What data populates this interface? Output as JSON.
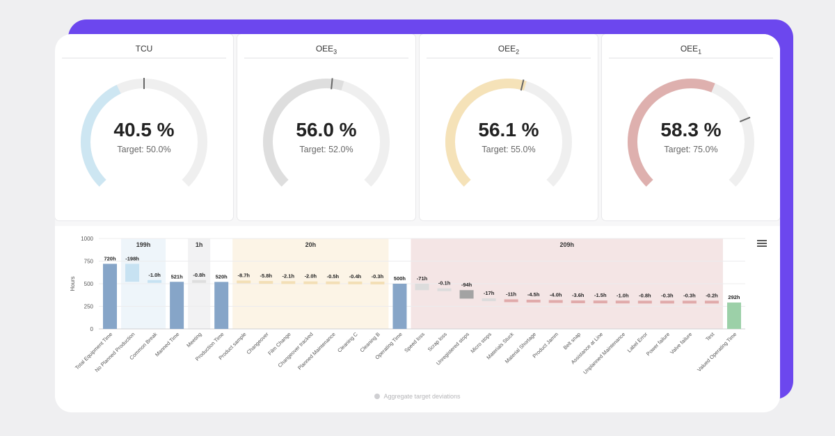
{
  "gauges": [
    {
      "title_main": "TCU",
      "title_sub": "",
      "value_label": "40.5 %",
      "target_label": "Target: 50.0%",
      "value": 40.5,
      "target": 50.0,
      "color": "#cde6f2"
    },
    {
      "title_main": "OEE",
      "title_sub": "3",
      "value_label": "56.0 %",
      "target_label": "Target: 52.0%",
      "value": 56.0,
      "target": 52.0,
      "color": "#dedede"
    },
    {
      "title_main": "OEE",
      "title_sub": "2",
      "value_label": "56.1 %",
      "target_label": "Target: 55.0%",
      "value": 56.1,
      "target": 55.0,
      "color": "#f5e2b8"
    },
    {
      "title_main": "OEE",
      "title_sub": "1",
      "value_label": "58.3 %",
      "target_label": "Target: 75.0%",
      "value": 58.3,
      "target": 75.0,
      "color": "#deb0ae"
    }
  ],
  "chart_data": {
    "type": "bar",
    "subtype": "waterfall",
    "ylabel": "Hours",
    "ylim": [
      0,
      1000
    ],
    "yticks": [
      "0",
      "250",
      "500",
      "750",
      "1000"
    ],
    "legend": "Aggregate target deviations",
    "legend_position": "bottom",
    "grid": true,
    "categories": [
      "Total Equipment Time",
      "No Planned Production",
      "Common Break",
      "Manned Time",
      "Meeting",
      "Production Time",
      "Product sample",
      "Changeover",
      "Film Change",
      "Changeover tracked",
      "Planned Maintenance",
      "Cleaning C",
      "Cleaning B",
      "Operating Time",
      "Speed loss",
      "Scrap loss",
      "Unregistered stops",
      "Micro stops",
      "Materials Stuck",
      "Material Shortage",
      "Product Jamm",
      "Belt snap",
      "Assistance at Line",
      "Unplanned Maintenance",
      "Label Error",
      "Power failure",
      "Valve failure",
      "Test",
      "Valued Operating Time"
    ],
    "bars": [
      {
        "label": "720h",
        "low": 0,
        "high": 720,
        "kind": "total"
      },
      {
        "label": "-198h",
        "low": 522,
        "high": 720,
        "kind": "blue"
      },
      {
        "label": "-1.0h",
        "low": 521,
        "high": 540,
        "kind": "blue"
      },
      {
        "label": "521h",
        "low": 0,
        "high": 521,
        "kind": "total"
      },
      {
        "label": "-0.8h",
        "low": 520,
        "high": 540,
        "kind": "gray"
      },
      {
        "label": "520h",
        "low": 0,
        "high": 520,
        "kind": "total"
      },
      {
        "label": "-8.7h",
        "low": 515,
        "high": 535,
        "kind": "orange"
      },
      {
        "label": "-5.8h",
        "low": 510,
        "high": 530,
        "kind": "orange"
      },
      {
        "label": "-2.1h",
        "low": 508,
        "high": 528,
        "kind": "orange"
      },
      {
        "label": "-2.0h",
        "low": 506,
        "high": 526,
        "kind": "orange"
      },
      {
        "label": "-0.5h",
        "low": 505,
        "high": 525,
        "kind": "orange"
      },
      {
        "label": "-0.4h",
        "low": 504,
        "high": 524,
        "kind": "orange"
      },
      {
        "label": "-0.3h",
        "low": 503,
        "high": 523,
        "kind": "orange"
      },
      {
        "label": "500h",
        "low": 0,
        "high": 500,
        "kind": "total"
      },
      {
        "label": "-71h",
        "low": 429,
        "high": 500,
        "kind": "lightgray"
      },
      {
        "label": "-0.1h",
        "low": 429,
        "high": 449,
        "kind": "lightgray"
      },
      {
        "label": "-94h",
        "low": 335,
        "high": 429,
        "kind": "darkgray"
      },
      {
        "label": "-17h",
        "low": 318,
        "high": 338,
        "kind": "lightgray"
      },
      {
        "label": "-11h",
        "low": 307,
        "high": 327,
        "kind": "red"
      },
      {
        "label": "-4.5h",
        "low": 303,
        "high": 323,
        "kind": "red"
      },
      {
        "label": "-4.0h",
        "low": 299,
        "high": 319,
        "kind": "red"
      },
      {
        "label": "-3.6h",
        "low": 295,
        "high": 315,
        "kind": "red"
      },
      {
        "label": "-1.5h",
        "low": 294,
        "high": 314,
        "kind": "red"
      },
      {
        "label": "-1.0h",
        "low": 293,
        "high": 313,
        "kind": "red"
      },
      {
        "label": "-0.8h",
        "low": 292,
        "high": 312,
        "kind": "red"
      },
      {
        "label": "-0.3h",
        "low": 292,
        "high": 312,
        "kind": "red"
      },
      {
        "label": "-0.3h",
        "low": 292,
        "high": 312,
        "kind": "red"
      },
      {
        "label": "-0.2h",
        "low": 292,
        "high": 312,
        "kind": "red"
      },
      {
        "label": "292h",
        "low": 0,
        "high": 292,
        "kind": "green"
      }
    ],
    "groups": [
      {
        "label": "199h",
        "from": 1,
        "to": 2,
        "color": "#eef5fa"
      },
      {
        "label": "1h",
        "from": 4,
        "to": 4,
        "color": "#f2f2f3"
      },
      {
        "label": "20h",
        "from": 6,
        "to": 12,
        "color": "#fcf4e6"
      },
      {
        "label": "209h",
        "from": 14,
        "to": 27,
        "color": "#f4e5e5"
      }
    ],
    "colors": {
      "total": "#86a5c8",
      "blue": "#c7e2f2",
      "gray": "#dedede",
      "orange": "#f3dfb6",
      "lightgray": "#dcdcdc",
      "darkgray": "#a3a3a3",
      "red": "#e0aaaa",
      "green": "#9cd0a8"
    }
  }
}
